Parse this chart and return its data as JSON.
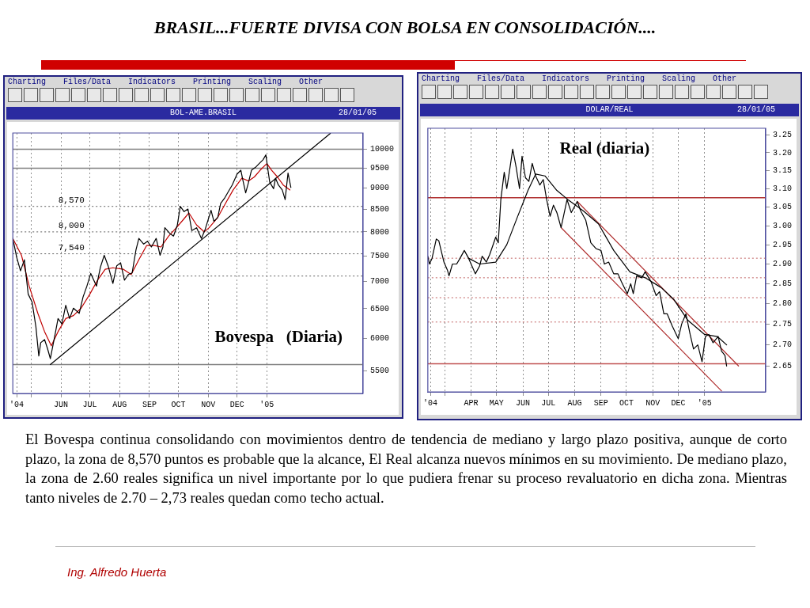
{
  "chart_data": [
    {
      "type": "line",
      "title": "Bovespa   (Diaria)",
      "subtitle": "BOL-AME.BRASIL",
      "log": true,
      "grid": "x",
      "marker": "none",
      "annotations": [
        "BRASIL...FUERTE DIVISA CON BOLSA EN CONSOLIDACIÓN....",
        "28/01/05",
        "Charting",
        "Files/Data",
        "Indicators",
        "Printing",
        "Scaling",
        "Other"
      ],
      "xlim": [
        "2004-04-12",
        "2005-04-11"
      ],
      "xticks": [
        {
          "value": "2004-04-16",
          "label": "'04"
        },
        {
          "value": "2004-05-01",
          "label": null
        },
        {
          "value": "2004-06-01",
          "label": "JUN"
        },
        {
          "value": "2004-07-01",
          "label": "JUL"
        },
        {
          "value": "2004-08-01",
          "label": "AUG"
        },
        {
          "value": "2004-09-01",
          "label": "SEP"
        },
        {
          "value": "2004-10-01",
          "label": "OCT"
        },
        {
          "value": "2004-11-01",
          "label": "NOV"
        },
        {
          "value": "2004-12-01",
          "label": "DEC"
        },
        {
          "value": "2005-01-01",
          "label": "'05"
        }
      ],
      "ylim": [
        5170,
        10450
      ],
      "yticks": [
        5500,
        6000,
        6500,
        7000,
        7500,
        8000,
        8500,
        9000,
        9500,
        10000
      ],
      "ref_lines": [
        {
          "axis": "y",
          "value": 10000,
          "color": "#808080"
        },
        {
          "axis": "y",
          "value": 9500,
          "color": "#808080"
        },
        {
          "axis": "y",
          "value": 5590,
          "color": "#808080"
        },
        {
          "axis": "y",
          "value": 8570,
          "label": "8,570",
          "color": "#606060",
          "line_style": "dotted"
        },
        {
          "axis": "y",
          "value": 8000,
          "label": "8,000",
          "color": "#606060",
          "line_style": "dotted"
        },
        {
          "axis": "y",
          "value": 7540,
          "label": "7,540",
          "color": "#606060",
          "line_style": "dotted"
        },
        {
          "axis": "y",
          "value": 7100,
          "color": "#606060",
          "line_style": "dotted"
        }
      ],
      "series": [
        {
          "color": "#000000",
          "x": [
            "2004-04-12",
            "2004-04-16",
            "2004-04-20",
            "2004-04-24",
            "2004-04-28",
            "2004-05-02",
            "2004-05-06",
            "2004-05-09",
            "2004-05-11",
            "2004-05-15",
            "2004-05-18",
            "2004-05-21",
            "2004-05-26",
            "2004-05-29",
            "2004-06-02",
            "2004-06-06",
            "2004-06-10",
            "2004-06-14",
            "2004-06-20",
            "2004-06-24",
            "2004-06-28",
            "2004-07-02",
            "2004-07-08",
            "2004-07-12",
            "2004-07-16",
            "2004-07-20",
            "2004-07-25",
            "2004-07-29",
            "2004-08-02",
            "2004-08-06",
            "2004-08-10",
            "2004-08-14",
            "2004-08-18",
            "2004-08-21",
            "2004-08-26",
            "2004-08-30",
            "2004-09-03",
            "2004-09-08",
            "2004-09-12",
            "2004-09-15",
            "2004-09-17",
            "2004-09-22",
            "2004-09-26",
            "2004-09-30",
            "2004-10-03",
            "2004-10-07",
            "2004-10-11",
            "2004-10-15",
            "2004-10-20",
            "2004-10-25",
            "2004-10-29",
            "2004-11-04",
            "2004-11-07",
            "2004-11-11",
            "2004-11-14",
            "2004-11-18",
            "2004-11-22",
            "2004-11-26",
            "2004-12-01",
            "2004-12-05",
            "2004-12-07",
            "2004-12-10",
            "2004-12-13",
            "2004-12-16",
            "2004-12-20",
            "2004-12-24",
            "2004-12-28",
            "2004-12-31",
            "2005-01-02",
            "2005-01-04",
            "2005-01-08",
            "2005-01-10",
            "2005-01-13",
            "2005-01-17",
            "2005-01-20",
            "2005-01-23",
            "2005-01-26"
          ],
          "values": [
            7860,
            7470,
            7200,
            7420,
            6760,
            6620,
            6190,
            5720,
            5930,
            5980,
            5840,
            5680,
            6070,
            6330,
            6240,
            6560,
            6330,
            6510,
            6420,
            6710,
            6910,
            7150,
            6910,
            7270,
            7510,
            7300,
            6960,
            7300,
            7360,
            7020,
            7130,
            7160,
            7620,
            7860,
            7740,
            7800,
            7680,
            7860,
            7510,
            7680,
            8090,
            7970,
            7910,
            8150,
            8570,
            8450,
            8510,
            8030,
            8090,
            7860,
            8060,
            8480,
            8230,
            8320,
            8640,
            8760,
            8920,
            9080,
            9350,
            9450,
            9210,
            8890,
            9150,
            9450,
            9520,
            9620,
            9720,
            9850,
            9480,
            9150,
            8990,
            9250,
            9080,
            8960,
            8730,
            9380,
            9020
          ]
        },
        {
          "color": "#c00000",
          "x": [
            "2004-04-12",
            "2004-04-21",
            "2004-04-29",
            "2004-05-08",
            "2004-05-15",
            "2004-05-22",
            "2004-05-29",
            "2004-06-06",
            "2004-06-14",
            "2004-06-22",
            "2004-07-01",
            "2004-07-09",
            "2004-07-17",
            "2004-07-25",
            "2004-08-05",
            "2004-08-13",
            "2004-08-21",
            "2004-08-29",
            "2004-09-06",
            "2004-09-13",
            "2004-09-21",
            "2004-09-29",
            "2004-10-07",
            "2004-10-12",
            "2004-10-20",
            "2004-10-28",
            "2004-11-02",
            "2004-11-11",
            "2004-11-19",
            "2004-11-27",
            "2004-12-06",
            "2004-12-13",
            "2004-12-19",
            "2004-12-25",
            "2005-01-01",
            "2005-01-06",
            "2005-01-12",
            "2005-01-18",
            "2005-01-25"
          ],
          "values": [
            7860,
            7510,
            6910,
            6420,
            6110,
            5880,
            6110,
            6330,
            6380,
            6510,
            6760,
            7020,
            7230,
            7260,
            7230,
            7130,
            7420,
            7710,
            7710,
            7680,
            7910,
            8090,
            8290,
            8420,
            8150,
            8000,
            8090,
            8320,
            8640,
            8960,
            9250,
            9180,
            9280,
            9450,
            9620,
            9450,
            9280,
            9080,
            8960
          ]
        },
        {
          "type": "line",
          "color": "#000000",
          "x": [
            "2004-05-21",
            "2005-03-08"
          ],
          "values": [
            5590,
            10440
          ]
        }
      ]
    },
    {
      "type": "line",
      "title": "Real (diaria)",
      "subtitle": "DOLAR/REAL",
      "log": true,
      "grid": "x",
      "marker": "none",
      "annotations": [
        "28/01/05",
        "Charting",
        "Files/Data",
        "Indicators",
        "Printing",
        "Scaling",
        "Other",
        "El Bovespa continua consolidando con movimientos dentro de tendencia de mediano y largo plazo positiva, aunque de corto plazo, la zona de 8,570 puntos es probable que la alcance, El Real alcanza nuevos mínimos en su movimiento. De mediano plazo, la zona de 2.60 reales significa un nivel importante por lo que pudiera frenar su proceso revaluatorio en dicha zona. Mientras tanto niveles de 2.70 – 2,73 reales quedan como techo actual.",
        "Ing. Alfredo Huerta"
      ],
      "xlim": [
        "2004-02-10",
        "2005-03-14"
      ],
      "xticks": [
        {
          "value": "2004-02-13",
          "label": "'04"
        },
        {
          "value": "2004-03-01",
          "label": null
        },
        {
          "value": "2004-04-01",
          "label": "APR"
        },
        {
          "value": "2004-05-01",
          "label": "MAY"
        },
        {
          "value": "2004-06-01",
          "label": "JUN"
        },
        {
          "value": "2004-07-01",
          "label": "JUL"
        },
        {
          "value": "2004-08-01",
          "label": "AUG"
        },
        {
          "value": "2004-09-01",
          "label": "SEP"
        },
        {
          "value": "2004-10-01",
          "label": "OCT"
        },
        {
          "value": "2004-11-01",
          "label": "NOV"
        },
        {
          "value": "2004-12-01",
          "label": "DEC"
        },
        {
          "value": "2005-01-01",
          "label": "'05"
        }
      ],
      "ylim": [
        2.59,
        3.27
      ],
      "yticks": [
        2.65,
        {
          "value": 2.7,
          "label": "2.70"
        },
        2.75,
        {
          "value": 2.8,
          "label": "2.80"
        },
        2.85,
        {
          "value": 2.9,
          "label": "2.90"
        },
        2.95,
        {
          "value": 3,
          "label": "3.00"
        },
        3.05,
        {
          "value": 3.1,
          "label": "3.10"
        },
        3.15,
        {
          "value": 3.2,
          "label": "3.20"
        },
        3.25
      ],
      "ref_lines": [
        {
          "axis": "y",
          "value": 3.075,
          "color": "#b03030"
        },
        {
          "axis": "y",
          "value": 2.655,
          "color": "#c05050"
        },
        {
          "axis": "y",
          "value": 2.915,
          "color": "#c06060",
          "line_style": "dotted"
        },
        {
          "axis": "y",
          "value": 2.865,
          "color": "#c06060",
          "line_style": "dotted"
        },
        {
          "axis": "y",
          "value": 2.815,
          "color": "#c06060",
          "line_style": "dotted"
        },
        {
          "axis": "y",
          "value": 2.755,
          "color": "#c06060",
          "line_style": "dotted"
        }
      ],
      "series": [
        {
          "color": "#000000",
          "x": [
            "2004-02-10",
            "2004-02-12",
            "2004-02-15",
            "2004-02-20",
            "2004-02-23",
            "2004-02-29",
            "2004-03-04",
            "2004-03-06",
            "2004-03-10",
            "2004-03-15",
            "2004-03-19",
            "2004-03-24",
            "2004-03-29",
            "2004-04-02",
            "2004-04-06",
            "2004-04-11",
            "2004-04-14",
            "2004-04-19",
            "2004-04-23",
            "2004-04-30",
            "2004-05-03",
            "2004-05-06",
            "2004-05-10",
            "2004-05-13",
            "2004-05-16",
            "2004-05-20",
            "2004-05-24",
            "2004-05-28",
            "2004-05-31",
            "2004-06-04",
            "2004-06-08",
            "2004-06-12",
            "2004-06-16",
            "2004-06-21",
            "2004-06-25",
            "2004-06-29",
            "2004-07-03",
            "2004-07-07",
            "2004-07-11",
            "2004-07-16",
            "2004-07-23",
            "2004-07-28",
            "2004-08-04",
            "2004-08-08",
            "2004-08-14",
            "2004-08-20",
            "2004-08-26",
            "2004-09-01",
            "2004-09-05",
            "2004-09-10",
            "2004-09-16",
            "2004-09-21",
            "2004-09-25",
            "2004-10-02",
            "2004-10-06",
            "2004-10-09",
            "2004-10-13",
            "2004-10-19",
            "2004-10-23",
            "2004-10-30",
            "2004-11-05",
            "2004-11-09",
            "2004-11-14",
            "2004-11-18",
            "2004-11-24",
            "2004-12-01",
            "2004-12-05",
            "2004-12-10",
            "2004-12-15",
            "2004-12-19",
            "2004-12-24",
            "2004-12-29",
            "2005-01-02",
            "2005-01-06",
            "2005-01-11",
            "2005-01-17",
            "2005-01-21",
            "2005-01-25",
            "2005-01-27"
          ],
          "values": [
            2.92,
            2.9,
            2.915,
            2.965,
            2.96,
            2.905,
            2.885,
            2.87,
            2.9,
            2.9,
            2.915,
            2.935,
            2.915,
            2.895,
            2.875,
            2.895,
            2.92,
            2.905,
            2.925,
            2.97,
            2.955,
            3.07,
            3.145,
            3.1,
            3.145,
            3.21,
            3.16,
            3.1,
            3.19,
            3.13,
            3.12,
            3.17,
            3.135,
            3.11,
            3.125,
            3.07,
            3.025,
            3.055,
            3.035,
            2.995,
            3.07,
            3.035,
            3.065,
            3.04,
            3.015,
            2.955,
            2.94,
            2.935,
            2.9,
            2.905,
            2.875,
            2.875,
            2.855,
            2.825,
            2.85,
            2.825,
            2.87,
            2.865,
            2.88,
            2.855,
            2.82,
            2.83,
            2.775,
            2.775,
            2.745,
            2.715,
            2.75,
            2.775,
            2.725,
            2.69,
            2.7,
            2.66,
            2.72,
            2.725,
            2.705,
            2.72,
            2.685,
            2.675,
            2.65
          ]
        },
        {
          "color": "#000000",
          "x": [
            "2004-03-29",
            "2004-04-11",
            "2004-04-30",
            "2004-05-13",
            "2004-05-25",
            "2004-06-07",
            "2004-06-16",
            "2004-06-27",
            "2004-07-11",
            "2004-07-24",
            "2004-08-11",
            "2004-08-29",
            "2004-09-16",
            "2004-10-05",
            "2004-10-23",
            "2004-11-11",
            "2004-11-26",
            "2004-12-12",
            "2005-01-01",
            "2005-01-16",
            "2005-01-27"
          ],
          "values": [
            2.915,
            2.9,
            2.905,
            2.95,
            3.02,
            3.095,
            3.14,
            3.135,
            3.095,
            3.07,
            3.04,
            3.005,
            2.935,
            2.88,
            2.865,
            2.84,
            2.81,
            2.76,
            2.725,
            2.72,
            2.7
          ]
        },
        {
          "type": "line",
          "color": "#b03030",
          "x": [
            "2004-08-04",
            "2005-02-10"
          ],
          "values": [
            3.065,
            2.65
          ]
        },
        {
          "type": "line",
          "color": "#b03030",
          "x": [
            "2004-07-16",
            "2005-01-21"
          ],
          "values": [
            2.995,
            2.592
          ]
        }
      ]
    }
  ]
}
